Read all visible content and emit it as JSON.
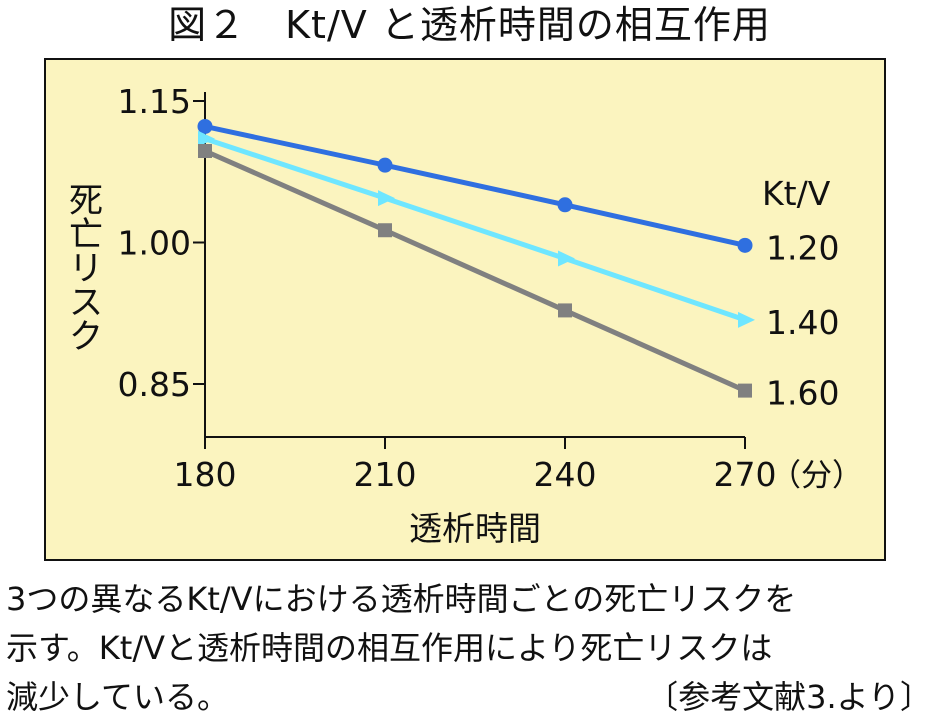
{
  "figure_title": "図２　Kt/V と透析時間の相互作用",
  "chart_data": {
    "type": "line",
    "xlabel": "透析時間",
    "x_unit": "（分）",
    "ylabel": "死亡リスク",
    "x": [
      180,
      210,
      240,
      270
    ],
    "x_ticks": [
      "180",
      "210",
      "240",
      "270"
    ],
    "y_ticks": [
      "1.15",
      "1.00",
      "0.85"
    ],
    "y_tick_values": [
      1.15,
      1.0,
      0.85
    ],
    "xlim": [
      180,
      270
    ],
    "ylim": [
      0.795,
      1.16
    ],
    "legend_title": "Kt/V",
    "series": [
      {
        "name": "1.20",
        "values": [
          1.123,
          1.082,
          1.04,
          0.997
        ],
        "color": "#2f6fe0",
        "marker": "circle"
      },
      {
        "name": "1.40",
        "values": [
          1.11,
          1.047,
          0.983,
          0.918
        ],
        "color": "#6fe6ff",
        "marker": "triangle"
      },
      {
        "name": "1.60",
        "values": [
          1.097,
          1.013,
          0.928,
          0.843
        ],
        "color": "#808080",
        "marker": "square"
      }
    ],
    "grid": false
  },
  "caption": {
    "line1": "3つの異なるKt/Vにおける透析時間ごとの死亡リスクを",
    "line2": "示す。Kt/Vと透析時間の相互作用により死亡リスクは",
    "line3": "減少している。",
    "reference": "〔参考文献3.より〕"
  }
}
